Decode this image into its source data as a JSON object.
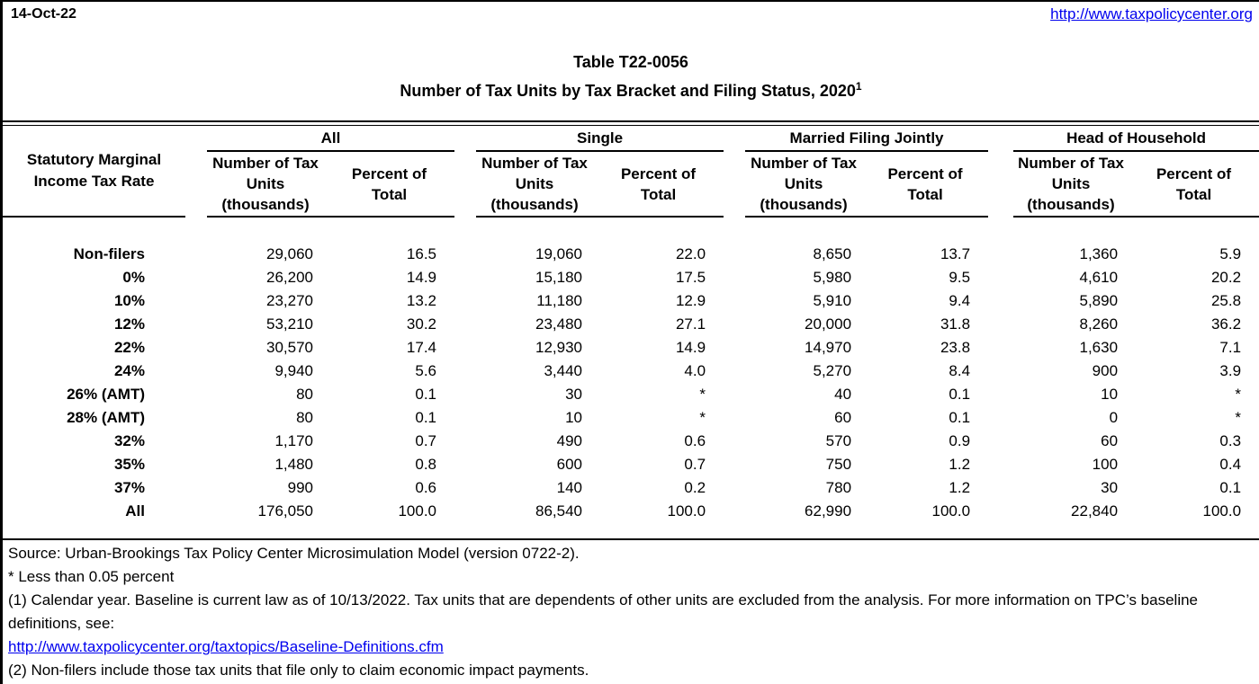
{
  "colors": {
    "link": "#0000EE",
    "text": "#000000",
    "border": "#000000",
    "background": "#FFFFFF"
  },
  "page": {
    "date": "14-Oct-22",
    "site_link": "http://www.taxpolicycenter.org"
  },
  "title": {
    "line1": "Table T22-0056",
    "line2": "Number of Tax Units by Tax Bracket and Filing Status, 2020",
    "superscript": "1"
  },
  "table": {
    "row_header": "Statutory Marginal Income Tax Rate",
    "groups": [
      "All",
      "Single",
      "Married Filing Jointly",
      "Head of Household"
    ],
    "subheaders": {
      "number": "Number of Tax Units (thousands)",
      "percent": "Percent of Total"
    },
    "rows": [
      {
        "rate": "Non-filers",
        "values": [
          "29,060",
          "16.5",
          "19,060",
          "22.0",
          "8,650",
          "13.7",
          "1,360",
          "5.9"
        ]
      },
      {
        "rate": "0%",
        "values": [
          "26,200",
          "14.9",
          "15,180",
          "17.5",
          "5,980",
          "9.5",
          "4,610",
          "20.2"
        ]
      },
      {
        "rate": "10%",
        "values": [
          "23,270",
          "13.2",
          "11,180",
          "12.9",
          "5,910",
          "9.4",
          "5,890",
          "25.8"
        ]
      },
      {
        "rate": "12%",
        "values": [
          "53,210",
          "30.2",
          "23,480",
          "27.1",
          "20,000",
          "31.8",
          "8,260",
          "36.2"
        ]
      },
      {
        "rate": "22%",
        "values": [
          "30,570",
          "17.4",
          "12,930",
          "14.9",
          "14,970",
          "23.8",
          "1,630",
          "7.1"
        ]
      },
      {
        "rate": "24%",
        "values": [
          "9,940",
          "5.6",
          "3,440",
          "4.0",
          "5,270",
          "8.4",
          "900",
          "3.9"
        ]
      },
      {
        "rate": "26% (AMT)",
        "values": [
          "80",
          "0.1",
          "30",
          "*",
          "40",
          "0.1",
          "10",
          "*"
        ]
      },
      {
        "rate": "28% (AMT)",
        "values": [
          "80",
          "0.1",
          "10",
          "*",
          "60",
          "0.1",
          "0",
          "*"
        ]
      },
      {
        "rate": "32%",
        "values": [
          "1,170",
          "0.7",
          "490",
          "0.6",
          "570",
          "0.9",
          "60",
          "0.3"
        ]
      },
      {
        "rate": "35%",
        "values": [
          "1,480",
          "0.8",
          "600",
          "0.7",
          "750",
          "1.2",
          "100",
          "0.4"
        ]
      },
      {
        "rate": "37%",
        "values": [
          "990",
          "0.6",
          "140",
          "0.2",
          "780",
          "1.2",
          "30",
          "0.1"
        ]
      },
      {
        "rate": "All",
        "values": [
          "176,050",
          "100.0",
          "86,540",
          "100.0",
          "62,990",
          "100.0",
          "22,840",
          "100.0"
        ]
      }
    ]
  },
  "footnotes": [
    {
      "type": "text",
      "text": "Source: Urban-Brookings Tax Policy Center Microsimulation Model (version 0722-2)."
    },
    {
      "type": "text",
      "text": "* Less than 0.05 percent"
    },
    {
      "type": "text",
      "text": "(1) Calendar year. Baseline is current law as of 10/13/2022. Tax units that are dependents of other units are excluded from the analysis. For more information on TPC’s baseline definitions, see:"
    },
    {
      "type": "link",
      "text": "http://www.taxpolicycenter.org/taxtopics/Baseline-Definitions.cfm"
    },
    {
      "type": "text",
      "text": "(2) Non-filers include those tax units that file only to claim economic impact payments."
    }
  ]
}
